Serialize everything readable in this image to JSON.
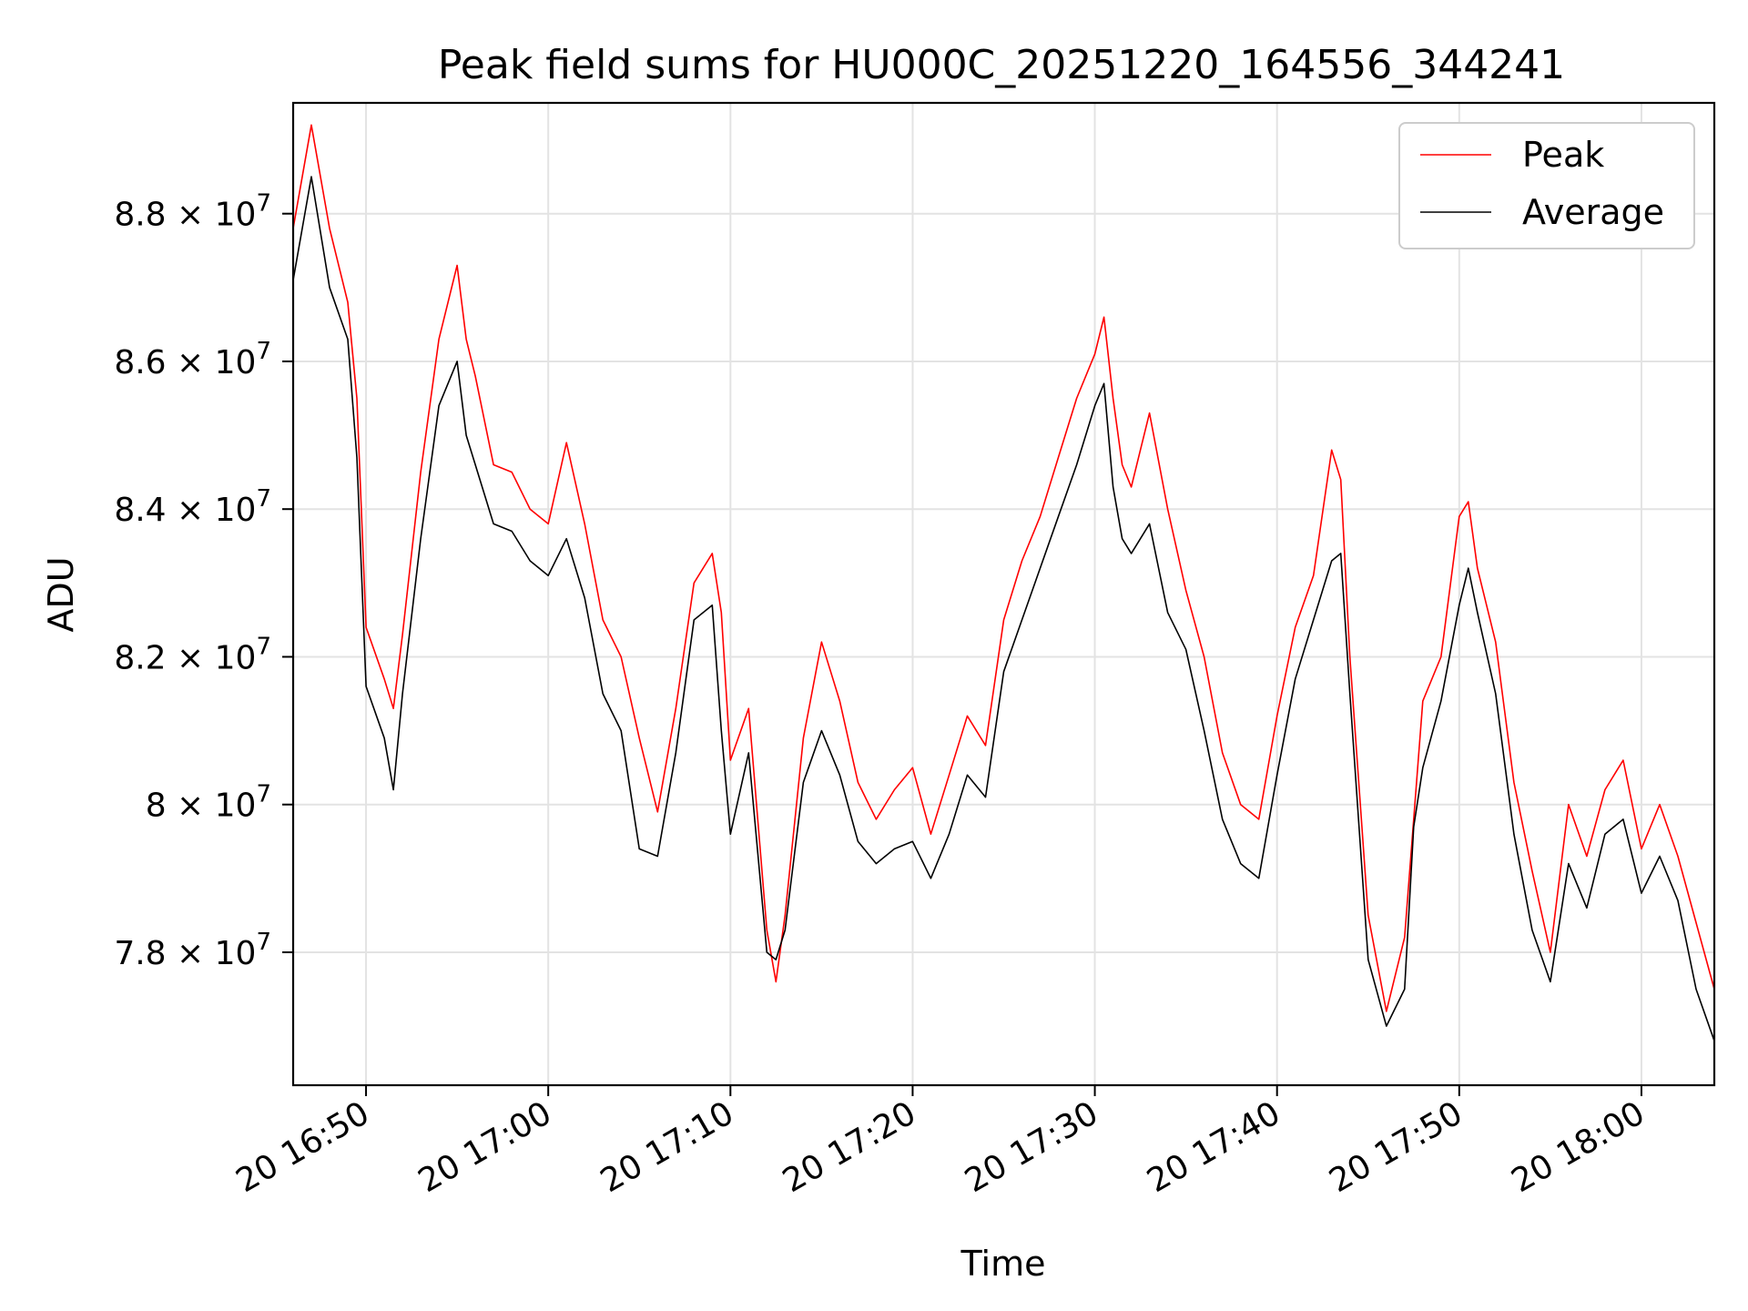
{
  "chart_data": {
    "type": "line",
    "title": "Peak field sums for HU000C_20251220_164556_344241",
    "xlabel": "Time",
    "ylabel": "ADU",
    "x_unit": "minutes since 20 16:45",
    "xlim": [
      1.0,
      79.0
    ],
    "ylim": [
      76.2,
      89.5
    ],
    "y_scale": "1e6",
    "grid": true,
    "legend_position": "top-right",
    "x_ticks": [
      {
        "value": 5,
        "label": "20 16:50"
      },
      {
        "value": 15,
        "label": "20 17:00"
      },
      {
        "value": 25,
        "label": "20 17:10"
      },
      {
        "value": 35,
        "label": "20 17:20"
      },
      {
        "value": 45,
        "label": "20 17:30"
      },
      {
        "value": 55,
        "label": "20 17:40"
      },
      {
        "value": 65,
        "label": "20 17:50"
      },
      {
        "value": 75,
        "label": "20 18:00"
      }
    ],
    "y_ticks": [
      {
        "value": 78,
        "mantissa": "7.8",
        "exponent": "7"
      },
      {
        "value": 80,
        "mantissa": "8",
        "exponent": "7"
      },
      {
        "value": 82,
        "mantissa": "8.2",
        "exponent": "7"
      },
      {
        "value": 84,
        "mantissa": "8.4",
        "exponent": "7"
      },
      {
        "value": 86,
        "mantissa": "8.6",
        "exponent": "7"
      },
      {
        "value": 88,
        "mantissa": "8.8",
        "exponent": "7"
      }
    ],
    "times_to_x": "x = 10 * h + m/ (hh:mm since 16:45 in minutes)",
    "series": [
      {
        "name": "Peak",
        "color": "#ff0000",
        "x": [
          1.0,
          2.0,
          3.0,
          4.0,
          4.5,
          5.0,
          6.0,
          6.5,
          7.0,
          8.0,
          9.0,
          10.0,
          10.5,
          11.0,
          12.0,
          13.0,
          14.0,
          15.0,
          16.0,
          17.0,
          18.0,
          19.0,
          20.0,
          21.0,
          22.0,
          23.0,
          24.0,
          24.5,
          25.0,
          26.0,
          27.0,
          27.5,
          28.0,
          29.0,
          30.0,
          31.0,
          32.0,
          33.0,
          34.0,
          35.0,
          36.0,
          37.0,
          38.0,
          39.0,
          40.0,
          41.0,
          42.0,
          43.0,
          44.0,
          45.0,
          45.5,
          46.0,
          46.5,
          47.0,
          48.0,
          49.0,
          50.0,
          51.0,
          52.0,
          53.0,
          54.0,
          55.0,
          56.0,
          57.0,
          58.0,
          58.5,
          59.0,
          60.0,
          61.0,
          62.0,
          62.5,
          63.0,
          64.0,
          65.0,
          65.5,
          66.0,
          67.0,
          68.0,
          69.0,
          70.0,
          71.0,
          72.0,
          73.0,
          74.0,
          75.0,
          76.0,
          77.0,
          78.0,
          79.0
        ],
        "values": [
          87.8,
          89.2,
          87.8,
          86.8,
          85.5,
          82.4,
          81.7,
          81.3,
          82.3,
          84.5,
          86.3,
          87.3,
          86.3,
          85.8,
          84.6,
          84.5,
          84.0,
          83.8,
          84.9,
          83.8,
          82.5,
          82.0,
          80.9,
          79.9,
          81.3,
          83.0,
          83.4,
          82.6,
          80.6,
          81.3,
          78.3,
          77.6,
          78.5,
          80.9,
          82.2,
          81.4,
          80.3,
          79.8,
          80.2,
          80.5,
          79.6,
          80.4,
          81.2,
          80.8,
          82.5,
          83.3,
          83.9,
          84.7,
          85.5,
          86.1,
          86.6,
          85.5,
          84.6,
          84.3,
          85.3,
          84.0,
          82.9,
          82.0,
          80.7,
          80.0,
          79.8,
          81.2,
          82.4,
          83.1,
          84.8,
          84.4,
          82.0,
          78.5,
          77.2,
          78.2,
          79.8,
          81.4,
          82.0,
          83.9,
          84.1,
          83.2,
          82.2,
          80.3,
          79.1,
          78.0,
          80.0,
          79.3,
          80.2,
          80.6,
          79.4,
          80.0,
          79.3,
          78.4,
          77.5
        ],
        "line_width": 1
      },
      {
        "name": "Average",
        "color": "#000000",
        "x": [
          1.0,
          2.0,
          3.0,
          4.0,
          4.5,
          5.0,
          6.0,
          6.5,
          7.0,
          8.0,
          9.0,
          10.0,
          10.5,
          11.0,
          12.0,
          13.0,
          14.0,
          15.0,
          16.0,
          17.0,
          18.0,
          19.0,
          20.0,
          21.0,
          22.0,
          23.0,
          24.0,
          24.5,
          25.0,
          26.0,
          27.0,
          27.5,
          28.0,
          29.0,
          30.0,
          31.0,
          32.0,
          33.0,
          34.0,
          35.0,
          36.0,
          37.0,
          38.0,
          39.0,
          40.0,
          41.0,
          42.0,
          43.0,
          44.0,
          45.0,
          45.5,
          46.0,
          46.5,
          47.0,
          48.0,
          49.0,
          50.0,
          51.0,
          52.0,
          53.0,
          54.0,
          55.0,
          56.0,
          57.0,
          58.0,
          58.5,
          59.0,
          60.0,
          61.0,
          62.0,
          62.5,
          63.0,
          64.0,
          65.0,
          65.5,
          66.0,
          67.0,
          68.0,
          69.0,
          70.0,
          71.0,
          72.0,
          73.0,
          74.0,
          75.0,
          76.0,
          77.0,
          78.0,
          79.0
        ],
        "values": [
          87.1,
          88.5,
          87.0,
          86.3,
          84.7,
          81.6,
          80.9,
          80.2,
          81.5,
          83.6,
          85.4,
          86.0,
          85.0,
          84.6,
          83.8,
          83.7,
          83.3,
          83.1,
          83.6,
          82.8,
          81.5,
          81.0,
          79.4,
          79.3,
          80.7,
          82.5,
          82.7,
          81.0,
          79.6,
          80.7,
          78.0,
          77.9,
          78.3,
          80.3,
          81.0,
          80.4,
          79.5,
          79.2,
          79.4,
          79.5,
          79.0,
          79.6,
          80.4,
          80.1,
          81.8,
          82.5,
          83.2,
          83.9,
          84.6,
          85.4,
          85.7,
          84.3,
          83.6,
          83.4,
          83.8,
          82.6,
          82.1,
          81.0,
          79.8,
          79.2,
          79.0,
          80.4,
          81.7,
          82.5,
          83.3,
          83.4,
          81.5,
          77.9,
          77.0,
          77.5,
          79.7,
          80.5,
          81.4,
          82.7,
          83.2,
          82.6,
          81.5,
          79.6,
          78.3,
          77.6,
          79.2,
          78.6,
          79.6,
          79.8,
          78.8,
          79.3,
          78.7,
          77.5,
          76.8
        ],
        "line_width": 1
      }
    ]
  }
}
